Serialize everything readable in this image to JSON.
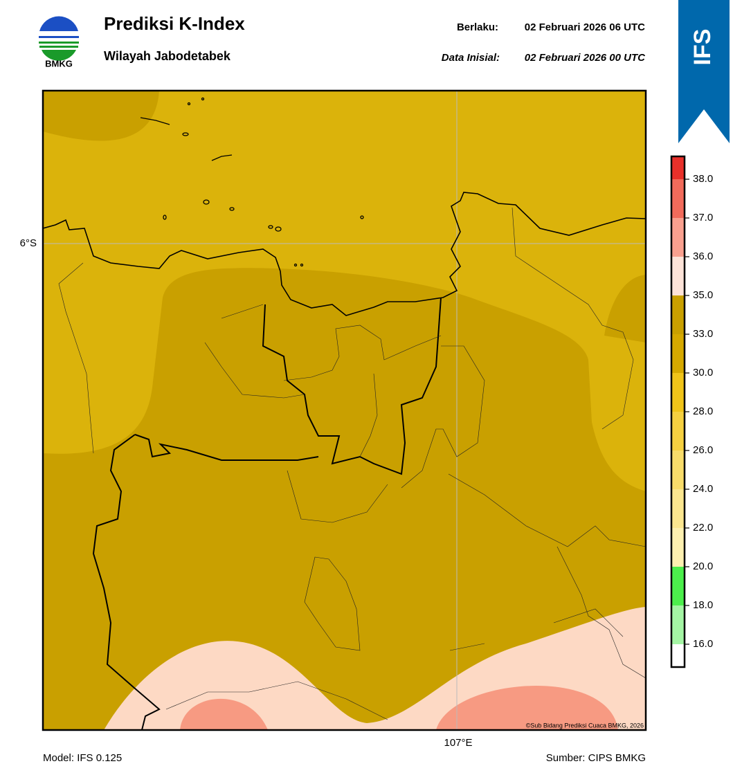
{
  "header": {
    "logo_text": "BMKG",
    "title": "Prediksi K-Index",
    "subtitle": "Wilayah Jabodetabek",
    "valid_label": "Berlaku:",
    "valid_time": "02 Februari 2026 06 UTC",
    "init_label": "Data Inisial:",
    "init_time": "02 Februari 2026 00 UTC",
    "model_badge": "IFS"
  },
  "map": {
    "lat_label": "6°S",
    "lon_label": "107°E",
    "credit": "©Sub Bidang Prediksi Cuaca BMKG, 2026"
  },
  "colorbar": {
    "ticks": [
      {
        "value": 16,
        "label": "16.0"
      },
      {
        "value": 18,
        "label": "18.0"
      },
      {
        "value": 20,
        "label": "20.0"
      },
      {
        "value": 22,
        "label": "22.0"
      },
      {
        "value": 24,
        "label": "24.0"
      },
      {
        "value": 26,
        "label": "26.0"
      },
      {
        "value": 28,
        "label": "28.0"
      },
      {
        "value": 30,
        "label": "30.0"
      },
      {
        "value": 33,
        "label": "33.0"
      },
      {
        "value": 35,
        "label": "35.0"
      },
      {
        "value": 36,
        "label": "36.0"
      },
      {
        "value": 37,
        "label": "37.0"
      },
      {
        "value": 38,
        "label": "38.0"
      }
    ],
    "colors": [
      "#ffffff",
      "#a4f5a4",
      "#4cef4c",
      "#fdf0b0",
      "#fbe68f",
      "#f8dc6a",
      "#f5d040",
      "#f0c419",
      "#d6a900",
      "#c9a000",
      "#fde3d8",
      "#f9a08f",
      "#f26b5b",
      "#e8302a"
    ]
  },
  "footer": {
    "model": "Model: IFS 0.125",
    "source": "Sumber: CIPS BMKG"
  }
}
